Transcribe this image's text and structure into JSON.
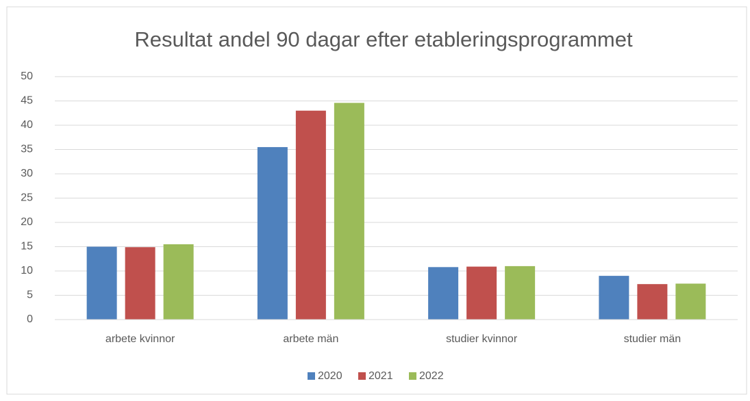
{
  "chart_data": {
    "type": "bar",
    "title": "Resultat andel 90 dagar efter etableringsprogrammet",
    "categories": [
      "arbete kvinnor",
      "arbete män",
      "studier kvinnor",
      "studier män"
    ],
    "series": [
      {
        "name": "2020",
        "color": "#4f81bd",
        "values": [
          15.0,
          35.5,
          10.8,
          9.0
        ]
      },
      {
        "name": "2021",
        "color": "#c0504d",
        "values": [
          14.9,
          43.0,
          10.9,
          7.3
        ]
      },
      {
        "name": "2022",
        "color": "#9bbb59",
        "values": [
          15.5,
          44.6,
          11.0,
          7.4
        ]
      }
    ],
    "ylim": [
      0,
      50
    ],
    "yticks": [
      0,
      5,
      10,
      15,
      20,
      25,
      30,
      35,
      40,
      45,
      50
    ],
    "grid": true,
    "legend": "bottom"
  }
}
